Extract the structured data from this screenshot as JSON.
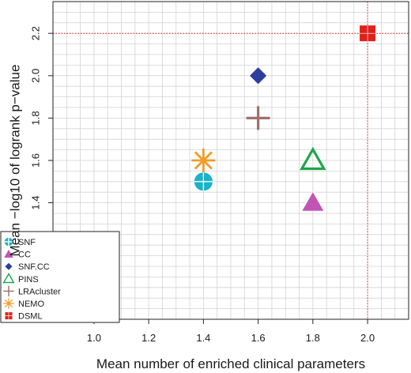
{
  "chart_data": {
    "type": "scatter",
    "xlabel": "Mean number of enriched clinical parameters",
    "ylabel": "Mean −log10 of logrank p−value",
    "xlim": [
      0.85,
      2.15
    ],
    "ylim": [
      0.85,
      2.35
    ],
    "x_ticks": [
      "1.0",
      "1.2",
      "1.4",
      "1.6",
      "1.8",
      "2.0"
    ],
    "y_ticks": [
      "1.0",
      "1.2",
      "1.4",
      "1.6",
      "1.8",
      "2.0",
      "2.2"
    ],
    "grid": true,
    "reference_lines": {
      "x": 2.0,
      "y": 2.2,
      "color": "#e0201b",
      "style": "dotted"
    },
    "legend_position": "bottom-left",
    "series": [
      {
        "name": "SNF",
        "x": 1.4,
        "y": 1.5,
        "marker": "circle-cross",
        "color": "#17b3c9"
      },
      {
        "name": "CC",
        "x": 1.8,
        "y": 1.4,
        "marker": "triangle",
        "color": "#c155b5"
      },
      {
        "name": "SNF.CC",
        "x": 1.6,
        "y": 2.0,
        "marker": "diamond",
        "color": "#2c3e9e"
      },
      {
        "name": "PINS",
        "x": 1.8,
        "y": 1.6,
        "marker": "triangle-open",
        "color": "#1ea64a"
      },
      {
        "name": "LRAcluster",
        "x": 1.6,
        "y": 1.8,
        "marker": "plus",
        "color": "#a0706a"
      },
      {
        "name": "NEMO",
        "x": 1.4,
        "y": 1.6,
        "marker": "asterisk",
        "color": "#f39a2a"
      },
      {
        "name": "DSML",
        "x": 2.0,
        "y": 2.2,
        "marker": "square",
        "color": "#e0201b"
      }
    ]
  }
}
